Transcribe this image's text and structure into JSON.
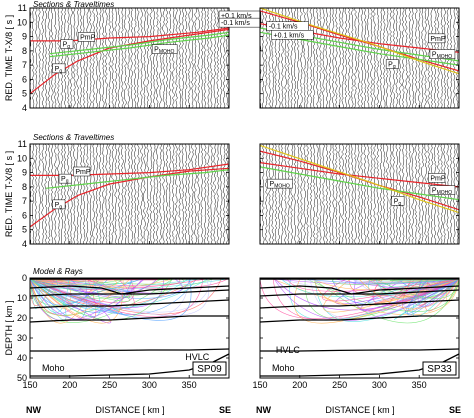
{
  "figure": {
    "section_title": "Sections & Traveltimes",
    "model_title": "Model & Rays",
    "xlabel": "DISTANCE  [ km ]",
    "ylabel_time": "RED. TIME  T-X/8   [ s ]",
    "ylabel_depth": "DEPTH  [ km ]",
    "left_end_label": "NW",
    "right_end_label": "SE"
  },
  "colors": {
    "red": "#e8242a",
    "green": "#5fd34a",
    "yellow": "#e0c419",
    "black": "#000000",
    "ray_palette": [
      "#ff4fa0",
      "#b84fff",
      "#4fa0ff",
      "#4fe0e0",
      "#6be36b",
      "#ffb04f",
      "#ff6b6b",
      "#c7c7ff"
    ]
  },
  "chart_data": [
    {
      "id": "section-sp09-upper",
      "type": "line",
      "column": "left",
      "xlim": [
        150,
        400
      ],
      "ylim": [
        4,
        11
      ],
      "xticks": [
        150,
        200,
        250,
        300,
        350
      ],
      "yticks": [
        4,
        5,
        6,
        7,
        8,
        9,
        10,
        11
      ],
      "trace_x_start": 150,
      "trace_x_end": 400,
      "trace_spacing_km": 4,
      "series": [
        {
          "color": "red",
          "x": [
            150,
            180,
            210,
            250,
            300,
            350,
            400
          ],
          "y": [
            5.0,
            6.3,
            7.3,
            8.2,
            8.7,
            9.1,
            9.5
          ]
        },
        {
          "color": "red",
          "x": [
            150,
            200,
            250,
            300,
            360,
            400
          ],
          "y": [
            8.7,
            8.7,
            8.9,
            9.0,
            9.3,
            9.6
          ]
        },
        {
          "color": "green",
          "x": [
            175,
            225,
            275,
            325,
            375,
            400
          ],
          "y": [
            7.8,
            8.1,
            8.4,
            8.8,
            9.1,
            9.3
          ]
        },
        {
          "color": "green",
          "x": [
            175,
            225,
            275,
            325,
            375,
            400
          ],
          "y": [
            7.6,
            7.9,
            8.2,
            8.6,
            8.9,
            9.1
          ]
        }
      ],
      "labels": [
        {
          "text": "PmP",
          "x": 213,
          "y": 8.8
        },
        {
          "text": "Pg",
          "x": 191,
          "y": 8.3
        },
        {
          "text": "Pg",
          "x": 181,
          "y": 6.6
        },
        {
          "text": "PMOHO",
          "x": 306,
          "y": 7.95
        },
        {
          "text": "+0.1 km/s",
          "x": 390,
          "y": 10.3
        },
        {
          "text": "-0.1 km/s",
          "x": 390,
          "y": 9.8
        }
      ]
    },
    {
      "id": "section-sp33-upper",
      "type": "line",
      "column": "right",
      "xlim": [
        150,
        400
      ],
      "ylim": [
        4,
        11
      ],
      "xticks": [
        150,
        200,
        250,
        300,
        350
      ],
      "yticks": [
        4,
        5,
        6,
        7,
        8,
        9,
        10,
        11
      ],
      "trace_x_start": 150,
      "trace_x_end": 400,
      "trace_spacing_km": 4,
      "series": [
        {
          "color": "red",
          "x": [
            150,
            200,
            250,
            300,
            350,
            400
          ],
          "y": [
            10.8,
            10.0,
            9.1,
            8.3,
            7.4,
            6.6
          ]
        },
        {
          "color": "red",
          "x": [
            150,
            200,
            250,
            300,
            350,
            400
          ],
          "y": [
            9.9,
            9.4,
            8.9,
            8.5,
            8.2,
            7.9
          ]
        },
        {
          "color": "green",
          "x": [
            150,
            200,
            250,
            300,
            350,
            400
          ],
          "y": [
            9.6,
            9.1,
            8.6,
            8.1,
            7.7,
            7.3
          ]
        },
        {
          "color": "green",
          "x": [
            150,
            200,
            250,
            300,
            350,
            400
          ],
          "y": [
            9.3,
            8.8,
            8.3,
            7.8,
            7.4,
            7.0
          ]
        },
        {
          "color": "yellow",
          "x": [
            150,
            220,
            290,
            350,
            400
          ],
          "y": [
            11.0,
            9.7,
            8.5,
            7.3,
            6.4
          ]
        }
      ],
      "labels": [
        {
          "text": "-0.1 km/s",
          "x": 161,
          "y": 9.55
        },
        {
          "text": "+0.1 km/s",
          "x": 167,
          "y": 8.95
        },
        {
          "text": "PmP",
          "x": 364,
          "y": 8.7
        },
        {
          "text": "PMOHO",
          "x": 366,
          "y": 7.6
        },
        {
          "text": "Pg",
          "x": 311,
          "y": 6.9
        }
      ]
    },
    {
      "id": "section-sp09-lower",
      "type": "line",
      "column": "left",
      "xlim": [
        150,
        400
      ],
      "ylim": [
        4,
        11
      ],
      "xticks": [
        150,
        200,
        250,
        300,
        350
      ],
      "yticks": [
        4,
        5,
        6,
        7,
        8,
        9,
        10,
        11
      ],
      "trace_x_start": 150,
      "trace_x_end": 400,
      "trace_spacing_km": 4,
      "series": [
        {
          "color": "red",
          "x": [
            150,
            180,
            210,
            250,
            300,
            350,
            400
          ],
          "y": [
            5.2,
            6.4,
            7.4,
            8.2,
            8.7,
            9.1,
            9.3
          ]
        },
        {
          "color": "red",
          "x": [
            150,
            200,
            250,
            300,
            350,
            400
          ],
          "y": [
            8.8,
            8.8,
            8.9,
            9.0,
            9.2,
            9.6
          ]
        },
        {
          "color": "green",
          "x": [
            170,
            220,
            270,
            320,
            370,
            400
          ],
          "y": [
            7.9,
            8.2,
            8.5,
            8.8,
            9.0,
            9.2
          ]
        }
      ],
      "labels": [
        {
          "text": "PmP",
          "x": 207,
          "y": 8.9
        },
        {
          "text": "Pg",
          "x": 189,
          "y": 8.4
        },
        {
          "text": "Pg",
          "x": 181,
          "y": 6.6
        }
      ]
    },
    {
      "id": "section-sp33-lower",
      "type": "line",
      "column": "right",
      "xlim": [
        150,
        400
      ],
      "ylim": [
        4,
        11
      ],
      "xticks": [
        150,
        200,
        250,
        300,
        350
      ],
      "yticks": [
        4,
        5,
        6,
        7,
        8,
        9,
        10,
        11
      ],
      "trace_x_start": 150,
      "trace_x_end": 400,
      "trace_spacing_km": 4,
      "series": [
        {
          "color": "red",
          "x": [
            150,
            200,
            250,
            300,
            350,
            400
          ],
          "y": [
            10.5,
            9.8,
            9.0,
            8.1,
            7.3,
            6.4
          ]
        },
        {
          "color": "red",
          "x": [
            150,
            200,
            250,
            300,
            350,
            400
          ],
          "y": [
            9.7,
            9.3,
            8.9,
            8.6,
            8.3,
            8.0
          ]
        },
        {
          "color": "green",
          "x": [
            150,
            200,
            250,
            300,
            350,
            400
          ],
          "y": [
            9.4,
            8.9,
            8.4,
            7.9,
            7.5,
            7.1
          ]
        },
        {
          "color": "yellow",
          "x": [
            150,
            220,
            290,
            350,
            400
          ],
          "y": [
            10.9,
            9.6,
            8.3,
            7.1,
            6.2
          ]
        }
      ],
      "labels": [
        {
          "text": "PMOHO",
          "x": 162,
          "y": 8.05
        },
        {
          "text": "PmP",
          "x": 364,
          "y": 8.45
        },
        {
          "text": "PMOHO",
          "x": 366,
          "y": 7.6
        },
        {
          "text": "Pg",
          "x": 318,
          "y": 6.85
        }
      ]
    },
    {
      "id": "model-sp09",
      "type": "line",
      "column": "left",
      "xlim": [
        150,
        400
      ],
      "ylim": [
        0,
        50
      ],
      "y_inverted": true,
      "xticks": [
        150,
        200,
        250,
        300,
        350
      ],
      "yticks": [
        0,
        10,
        20,
        30,
        40,
        50
      ],
      "interfaces": [
        {
          "x": [
            150,
            200,
            250,
            300,
            350,
            400
          ],
          "y": [
            0.5,
            0.5,
            0.4,
            0.4,
            0.4,
            0.4
          ]
        },
        {
          "x": [
            150,
            200,
            240,
            265,
            300,
            350,
            400
          ],
          "y": [
            5,
            4,
            5,
            8,
            6,
            5,
            4
          ]
        },
        {
          "x": [
            150,
            200,
            250,
            300,
            350,
            400
          ],
          "y": [
            9,
            8,
            8,
            8,
            7,
            6
          ]
        },
        {
          "x": [
            150,
            200,
            250,
            300,
            350,
            400
          ],
          "y": [
            15,
            14,
            14,
            13,
            12,
            11
          ]
        },
        {
          "x": [
            150,
            200,
            250,
            300,
            350,
            400
          ],
          "y": [
            22,
            21,
            21,
            20,
            19,
            19
          ]
        },
        {
          "x": [
            150,
            200,
            250,
            300,
            350,
            400
          ],
          "y": [
            36.5,
            36.5,
            36.2,
            36,
            36,
            35.5
          ]
        },
        {
          "x": [
            150,
            200,
            250,
            300,
            350,
            380,
            400
          ],
          "y": [
            49,
            49,
            48.5,
            48,
            46,
            42,
            38
          ]
        }
      ],
      "labels": [
        {
          "text": "HVLC",
          "x": 345,
          "y": 41
        },
        {
          "text": "Moho",
          "x": 165,
          "y": 46.5
        }
      ],
      "shot_label": "SP09"
    },
    {
      "id": "model-sp33",
      "type": "line",
      "column": "right",
      "xlim": [
        150,
        400
      ],
      "ylim": [
        0,
        50
      ],
      "y_inverted": true,
      "xticks": [
        150,
        200,
        250,
        300,
        350
      ],
      "yticks": [
        0,
        10,
        20,
        30,
        40,
        50
      ],
      "interfaces": [
        {
          "x": [
            150,
            200,
            250,
            300,
            350,
            400
          ],
          "y": [
            0.5,
            0.5,
            0.4,
            0.4,
            0.4,
            0.4
          ]
        },
        {
          "x": [
            150,
            200,
            240,
            265,
            300,
            350,
            400
          ],
          "y": [
            5,
            4,
            5,
            8,
            6,
            5,
            4
          ]
        },
        {
          "x": [
            150,
            200,
            250,
            300,
            350,
            400
          ],
          "y": [
            9,
            8,
            8,
            8,
            7,
            6
          ]
        },
        {
          "x": [
            150,
            200,
            250,
            300,
            350,
            400
          ],
          "y": [
            15,
            14,
            14,
            13,
            12,
            11
          ]
        },
        {
          "x": [
            150,
            200,
            250,
            300,
            350,
            400
          ],
          "y": [
            22,
            21,
            21,
            20,
            19,
            19
          ]
        },
        {
          "x": [
            150,
            200,
            250,
            300,
            350,
            400
          ],
          "y": [
            36.5,
            36.5,
            36.2,
            36,
            36,
            35.5
          ]
        },
        {
          "x": [
            150,
            200,
            250,
            300,
            350,
            380,
            400
          ],
          "y": [
            49,
            49,
            48.5,
            48,
            46,
            42,
            38
          ]
        }
      ],
      "labels": [
        {
          "text": "HVLC",
          "x": 170,
          "y": 37.5
        },
        {
          "text": "Moho",
          "x": 165,
          "y": 46.5
        }
      ],
      "shot_label": "SP33"
    }
  ]
}
